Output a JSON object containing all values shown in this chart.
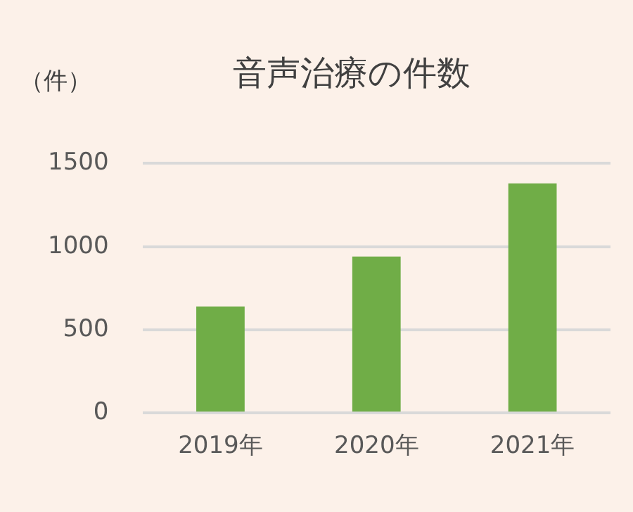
{
  "chart_data": {
    "type": "bar",
    "title": "音声治療の件数",
    "ylabel": "（件）",
    "categories": [
      "2019年",
      "2020年",
      "2021年"
    ],
    "values": [
      640,
      940,
      1380
    ],
    "color": "#70ad47",
    "ylim": [
      0,
      1500
    ],
    "yticks": [
      0,
      500,
      1000,
      1500
    ],
    "grid": "y"
  }
}
